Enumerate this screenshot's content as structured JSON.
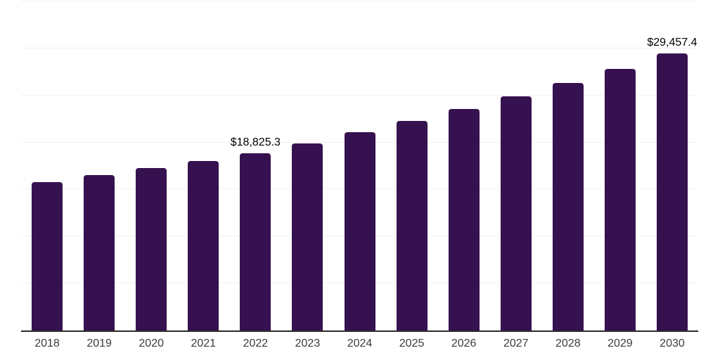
{
  "chart_data": {
    "type": "bar",
    "categories": [
      "2018",
      "2019",
      "2020",
      "2021",
      "2022",
      "2023",
      "2024",
      "2025",
      "2026",
      "2027",
      "2028",
      "2029",
      "2030"
    ],
    "values": [
      15760,
      16510,
      17250,
      18000,
      18825.3,
      19909,
      21055,
      22267,
      23549,
      24905,
      26338,
      27854,
      29457.4
    ],
    "data_labels": [
      null,
      null,
      null,
      null,
      "$18,825.3",
      null,
      null,
      null,
      null,
      null,
      null,
      null,
      "$29,457.4"
    ],
    "ylim": [
      0,
      35000
    ],
    "gridline_interval": 5000,
    "legend": "none",
    "grid": "horizontal",
    "bar_color": "#36114f",
    "axis_line_color": "#2b2b2b",
    "gridline_color": "#f0f0f0",
    "data_label_color": "#000000",
    "tick_label_color": "#3c3c3c"
  }
}
